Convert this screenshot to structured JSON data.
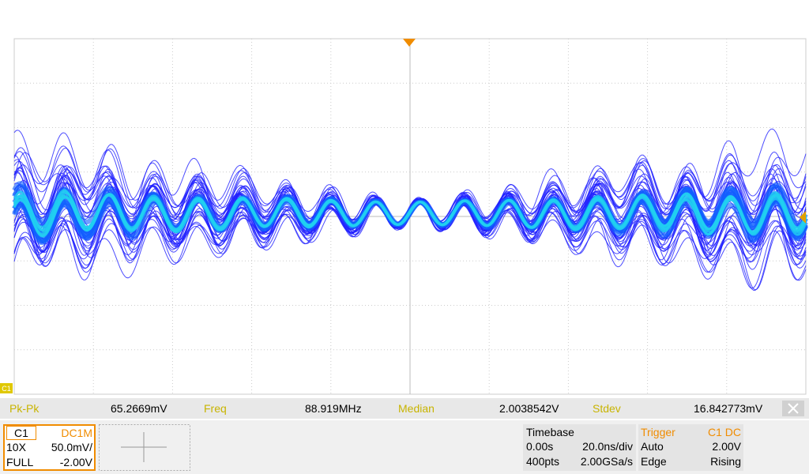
{
  "channel_marker": "C1",
  "measurements": [
    {
      "name": "Pk-Pk",
      "value": "65.2669mV"
    },
    {
      "name": "Freq",
      "value": "88.919MHz"
    },
    {
      "name": "Median",
      "value": "2.0038542V"
    },
    {
      "name": "Stdev",
      "value": "16.842773mV"
    }
  ],
  "channel": {
    "name": "C1",
    "coupling": "DC1M",
    "probe": "10X",
    "scale": "50.0mV/",
    "bandwidth": "FULL",
    "offset": "-2.00V"
  },
  "timebase": {
    "title": "Timebase",
    "delay": "0.00s",
    "scale": "20.0ns/div",
    "points": "400pts",
    "rate": "2.00GSa/s"
  },
  "trigger": {
    "title": "Trigger",
    "source": "C1 DC",
    "mode": "Auto",
    "level": "2.00V",
    "type": "Edge",
    "slope": "Rising"
  }
}
